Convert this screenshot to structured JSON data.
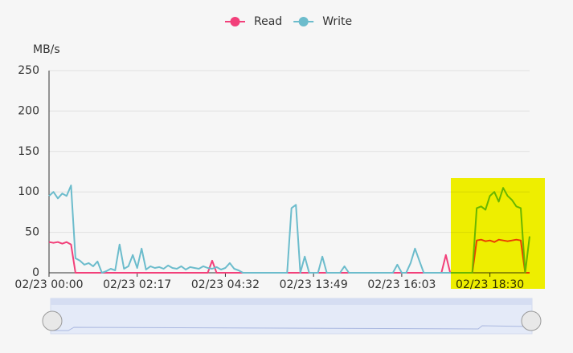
{
  "chart_data": {
    "type": "line",
    "y_axis_label": "MB/s",
    "categories": [
      "02/23 00:00",
      null,
      null,
      null,
      null,
      null,
      null,
      null,
      null,
      null,
      null,
      null,
      null,
      null,
      null,
      null,
      null,
      null,
      null,
      null,
      "02/23 02:17",
      null,
      null,
      null,
      null,
      null,
      null,
      null,
      null,
      null,
      null,
      null,
      null,
      null,
      null,
      null,
      null,
      null,
      null,
      null,
      "02/23 04:32",
      null,
      null,
      null,
      null,
      null,
      null,
      null,
      null,
      null,
      null,
      null,
      null,
      null,
      null,
      null,
      null,
      null,
      null,
      null,
      "02/23 13:49",
      null,
      null,
      null,
      null,
      null,
      null,
      null,
      null,
      null,
      null,
      null,
      null,
      null,
      null,
      null,
      null,
      null,
      null,
      null,
      "02/23 16:03",
      null,
      null,
      null,
      null,
      null,
      null,
      null,
      null,
      null,
      null,
      null,
      null,
      null,
      null,
      null,
      null,
      null,
      null,
      null,
      "02/23 18:30",
      null,
      null,
      null,
      null,
      null,
      null,
      null,
      null,
      null
    ],
    "series": [
      {
        "name": "Read",
        "color": "#f2407a",
        "values": [
          38,
          37,
          38,
          36,
          38,
          35,
          0,
          0,
          0,
          0,
          0,
          0,
          0,
          0,
          0,
          0,
          0,
          0,
          0,
          0,
          0,
          0,
          0,
          0,
          0,
          0,
          0,
          0,
          0,
          0,
          0,
          0,
          0,
          0,
          0,
          0,
          0,
          15,
          0,
          0,
          0,
          0,
          0,
          0,
          0,
          0,
          0,
          0,
          0,
          0,
          0,
          0,
          0,
          0,
          0,
          0,
          0,
          0,
          0,
          0,
          0,
          0,
          0,
          0,
          0,
          0,
          0,
          0,
          0,
          0,
          0,
          0,
          0,
          0,
          0,
          0,
          0,
          0,
          0,
          0,
          0,
          0,
          0,
          0,
          0,
          0,
          0,
          0,
          0,
          0,
          22,
          0,
          0,
          0,
          0,
          0,
          0,
          40,
          41,
          39,
          40,
          38,
          41,
          40,
          39,
          40,
          41,
          40,
          0,
          0
        ]
      },
      {
        "name": "Write",
        "color": "#6cbccc",
        "values": [
          95,
          100,
          92,
          98,
          95,
          108,
          18,
          15,
          10,
          12,
          8,
          14,
          0,
          2,
          5,
          3,
          35,
          5,
          8,
          22,
          6,
          30,
          4,
          8,
          6,
          7,
          5,
          9,
          6,
          5,
          8,
          4,
          7,
          6,
          5,
          8,
          6,
          5,
          7,
          4,
          6,
          12,
          5,
          3,
          0,
          0,
          0,
          0,
          0,
          0,
          0,
          0,
          0,
          0,
          0,
          80,
          84,
          0,
          20,
          0,
          0,
          0,
          20,
          0,
          0,
          0,
          0,
          8,
          0,
          0,
          0,
          0,
          0,
          0,
          0,
          0,
          0,
          0,
          0,
          10,
          0,
          0,
          12,
          30,
          15,
          0,
          0,
          0,
          0,
          0,
          0,
          0,
          0,
          0,
          0,
          0,
          0,
          80,
          82,
          78,
          95,
          100,
          88,
          105,
          95,
          90,
          82,
          80,
          0,
          45
        ]
      }
    ],
    "ylim": [
      0,
      250
    ],
    "yticks": [
      0,
      50,
      100,
      150,
      200,
      250
    ],
    "grid": true
  }
}
